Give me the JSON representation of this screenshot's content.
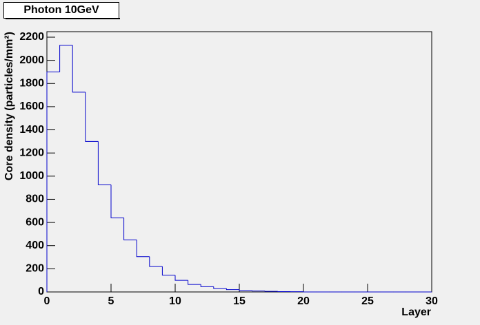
{
  "chart_data": {
    "type": "histogram",
    "title": "Photon 10GeV",
    "x_label": "Layer",
    "y_label": "Core density (particles/mm²)",
    "bins": [
      0,
      1,
      2,
      3,
      4,
      5,
      6,
      7,
      8,
      9,
      10,
      11,
      12,
      13,
      14,
      15,
      16,
      17,
      18,
      19,
      20,
      21,
      22,
      23,
      24,
      25,
      26,
      27,
      28,
      29,
      30
    ],
    "values": [
      1900,
      2130,
      1725,
      1300,
      925,
      640,
      450,
      305,
      220,
      145,
      100,
      65,
      45,
      30,
      20,
      12,
      8,
      5,
      3,
      2,
      0,
      0,
      0,
      0,
      0,
      0,
      0,
      0,
      0,
      0
    ],
    "color": "#0000cc",
    "xlim": [
      0,
      30
    ],
    "xticks": [
      0,
      5,
      10,
      15,
      20,
      25,
      30
    ],
    "ylim": [
      0,
      2200
    ],
    "yticks": [
      0,
      200,
      400,
      600,
      800,
      1000,
      1200,
      1400,
      1600,
      1800,
      2000,
      2200
    ]
  }
}
